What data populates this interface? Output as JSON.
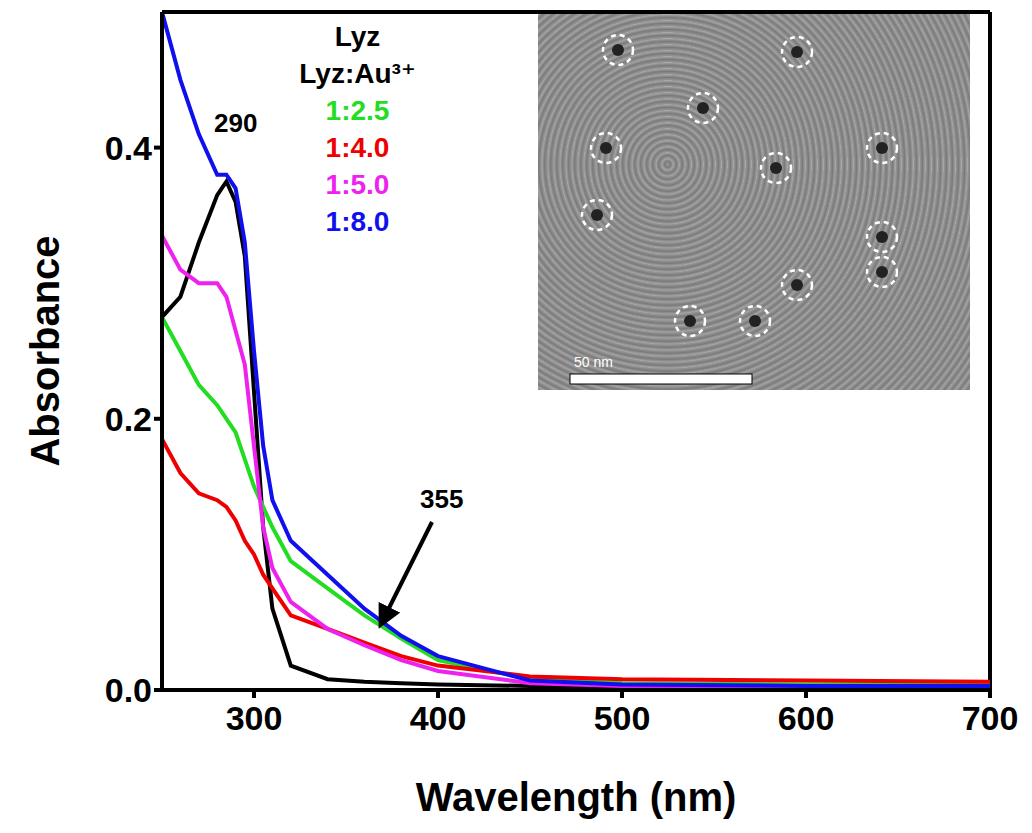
{
  "chart_data": {
    "type": "line",
    "x_label": "Wavelength (nm)",
    "y_label": "Absorbance",
    "xlim": [
      250,
      700
    ],
    "xticks": [
      300,
      400,
      500,
      600,
      700
    ],
    "ylim": [
      0,
      0.5
    ],
    "yticks": [
      {
        "value": 0,
        "label": "0.0"
      },
      {
        "value": 0.2,
        "label": "0.2"
      },
      {
        "value": 0.4,
        "label": "0.4"
      }
    ],
    "grid": false,
    "legend": "top left",
    "legend_title": "Lyz:Au³⁺",
    "annotations": [
      "290",
      "355"
    ],
    "inset_scale_label": "50 nm",
    "x": [
      250,
      260,
      270,
      280,
      285,
      290,
      295,
      300,
      305,
      310,
      320,
      340,
      360,
      380,
      400,
      450,
      500,
      600,
      700
    ],
    "series": [
      {
        "name": "Lyz",
        "color": "#000000",
        "values": [
          0.275,
          0.29,
          0.33,
          0.365,
          0.375,
          0.36,
          0.32,
          0.22,
          0.12,
          0.06,
          0.018,
          0.008,
          0.006,
          0.005,
          0.004,
          0.003,
          0.003,
          0.002,
          0.002
        ]
      },
      {
        "name": "1:2.5",
        "color": "#22dd22",
        "values": [
          0.275,
          0.25,
          0.225,
          0.21,
          0.2,
          0.19,
          0.17,
          0.15,
          0.135,
          0.12,
          0.095,
          0.075,
          0.055,
          0.038,
          0.022,
          0.008,
          0.005,
          0.004,
          0.004
        ]
      },
      {
        "name": "1:4.0",
        "color": "#ee0000",
        "values": [
          0.185,
          0.16,
          0.145,
          0.14,
          0.135,
          0.125,
          0.11,
          0.1,
          0.085,
          0.075,
          0.055,
          0.045,
          0.035,
          0.025,
          0.018,
          0.01,
          0.008,
          0.007,
          0.006
        ]
      },
      {
        "name": "1:5.0",
        "color": "#ee22ee",
        "values": [
          0.335,
          0.31,
          0.3,
          0.3,
          0.29,
          0.265,
          0.24,
          0.18,
          0.12,
          0.09,
          0.065,
          0.045,
          0.033,
          0.022,
          0.014,
          0.005,
          0.003,
          0.002,
          0.002
        ]
      },
      {
        "name": "1:8.0",
        "color": "#1010ee",
        "values": [
          0.5,
          0.45,
          0.41,
          0.38,
          0.38,
          0.37,
          0.33,
          0.25,
          0.18,
          0.14,
          0.11,
          0.085,
          0.06,
          0.04,
          0.025,
          0.007,
          0.004,
          0.003,
          0.003
        ]
      }
    ]
  }
}
